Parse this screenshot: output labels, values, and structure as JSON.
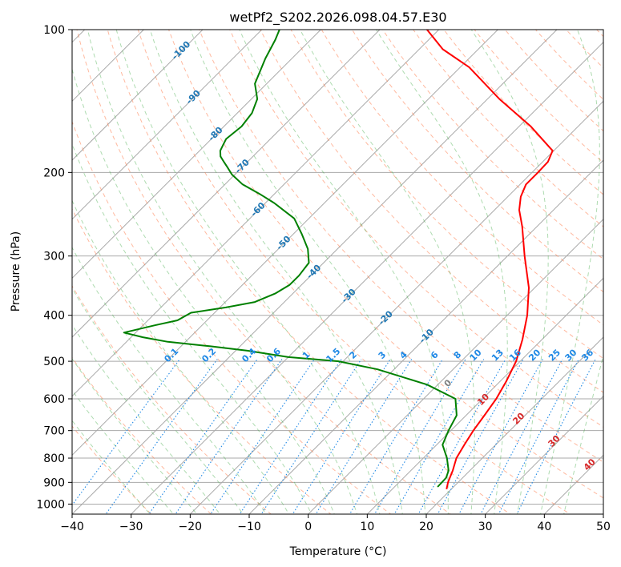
{
  "chart_data": {
    "type": "line",
    "title": "wetPf2_S202.2026.098.04.57.E30",
    "xlabel": "Temperature (°C)",
    "ylabel": "Pressure (hPa)",
    "xlim": [
      -40,
      50
    ],
    "ylim": [
      1050,
      100
    ],
    "y_scale": "log",
    "grid": true,
    "x_ticks": [
      "−40",
      "−30",
      "−20",
      "−10",
      "0",
      "10",
      "20",
      "30",
      "40",
      "50"
    ],
    "x_tick_values": [
      -40,
      -30,
      -20,
      -10,
      0,
      10,
      20,
      30,
      40,
      50
    ],
    "y_ticks": [
      "100",
      "200",
      "300",
      "400",
      "500",
      "600",
      "700",
      "800",
      "900",
      "1000"
    ],
    "y_tick_values": [
      100,
      200,
      300,
      400,
      500,
      600,
      700,
      800,
      900,
      1000
    ],
    "skew_degrees": 45,
    "series": [
      {
        "color": "#ff0000",
        "pressure": [
          930,
          900,
          850,
          800,
          750,
          700,
          650,
          600,
          550,
          500,
          450,
          400,
          350,
          300,
          260,
          240,
          225,
          212,
          205,
          200,
          190,
          180,
          160,
          140,
          120,
          110,
          100
        ],
        "temperature": [
          19.2,
          18.3,
          17.1,
          15.6,
          14.7,
          13.8,
          13.1,
          12.3,
          11.0,
          9.3,
          6.7,
          3.4,
          -1.0,
          -7.1,
          -12.5,
          -15.8,
          -17.8,
          -19.0,
          -19.0,
          -19.0,
          -19.1,
          -20.2,
          -28.0,
          -38.0,
          -48.5,
          -56.0,
          -62.0
        ]
      },
      {
        "color": "#008000",
        "pressure": [
          920,
          880,
          850,
          800,
          750,
          700,
          650,
          600,
          560,
          520,
          500,
          490,
          475,
          465,
          455,
          445,
          435,
          420,
          410,
          395,
          385,
          375,
          360,
          345,
          330,
          310,
          290,
          270,
          250,
          232,
          222,
          212,
          202,
          195,
          190,
          185,
          180,
          175,
          170,
          160,
          150,
          140,
          130,
          115,
          105,
          100
        ],
        "temperature": [
          17.3,
          17.2,
          16.4,
          14.0,
          11.0,
          9.6,
          8.4,
          5.4,
          -1.8,
          -12.8,
          -20.8,
          -30.0,
          -38.0,
          -45.0,
          -53.0,
          -58.0,
          -62.0,
          -58.0,
          -55.0,
          -54.0,
          -49.0,
          -45.0,
          -43.0,
          -42.0,
          -42.0,
          -42.5,
          -45.0,
          -48.5,
          -52.5,
          -58.5,
          -62.5,
          -67.0,
          -70.5,
          -72.5,
          -74.0,
          -75.5,
          -76.5,
          -77.0,
          -77.5,
          -77.0,
          -77.5,
          -79.0,
          -82.0,
          -84.5,
          -86.0,
          -87.0
        ]
      }
    ],
    "dry_adiabat_labels": [
      "-100",
      "-90",
      "-80",
      "-70",
      "-60",
      "-50",
      "-40",
      "-30",
      "-20",
      "-10"
    ],
    "mixing_ratio_labels": [
      "0.1",
      "0.2",
      "0.4",
      "0.6",
      "1",
      "1.5",
      "2",
      "3",
      "4",
      "6",
      "8",
      "10",
      "13",
      "16",
      "20",
      "25",
      "30",
      "36"
    ],
    "moist_adiabat_labels": [
      "0",
      "10",
      "20",
      "30",
      "40"
    ],
    "colors": {
      "temperature": "#ff0000",
      "dewpoint": "#008000",
      "isotherm": "#a9a9a9",
      "isobar": "#a9a9a9",
      "dry_adiabat": "#ff7f50",
      "moist_adiabat": "#4caf50",
      "mixing_ratio": "#1e88e5",
      "dry_adiabat_label": "#1f77b4",
      "moist_label_zero": "#808080",
      "moist_label": "#d62728"
    }
  }
}
